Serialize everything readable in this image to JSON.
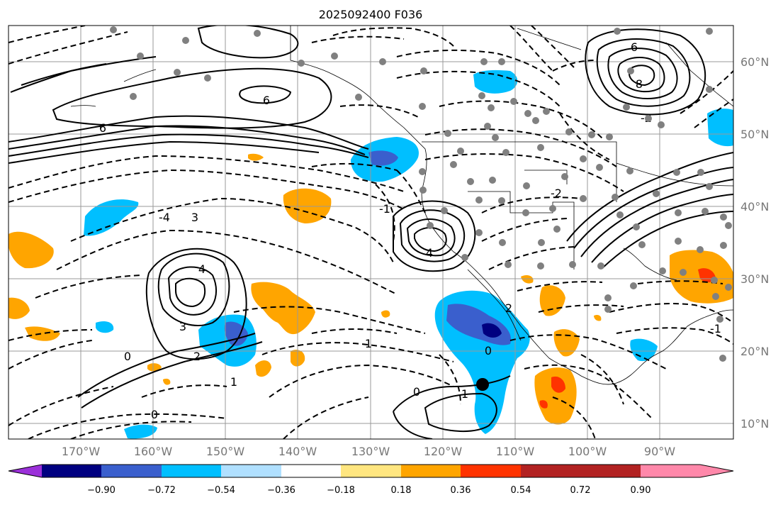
{
  "title": "2025092400 F036",
  "map": {
    "lat_labels": [
      "60°N",
      "50°N",
      "40°N",
      "30°N",
      "20°N",
      "10°N"
    ],
    "lon_labels": [
      "170°W",
      "160°W",
      "150°W",
      "140°W",
      "130°W",
      "120°W",
      "110°W",
      "100°W",
      "90°W"
    ],
    "contour_labels": [
      "6",
      "6",
      "4",
      "3",
      "2",
      "1",
      "0",
      "-2",
      "-4",
      "8",
      "6",
      "3",
      "4",
      "2",
      "0",
      "1",
      "1",
      "-1",
      "-1",
      "-2",
      "0",
      "0"
    ]
  },
  "colorbar": {
    "tick_labels": [
      "−0.90",
      "−0.72",
      "−0.54",
      "−0.36",
      "−0.18",
      "0.18",
      "0.36",
      "0.54",
      "0.72",
      "0.90"
    ],
    "colors": [
      "#9b30d9",
      "#000080",
      "#3a5fcd",
      "#00bfff",
      "#b0e0ff",
      "#ffffff",
      "#ffe680",
      "#ffa500",
      "#ff3300",
      "#b22222",
      "#ff88aa"
    ]
  },
  "colors": {
    "contour": "#000000",
    "grid": "#999999",
    "station_dot": "#808080",
    "marker": "#000000"
  }
}
